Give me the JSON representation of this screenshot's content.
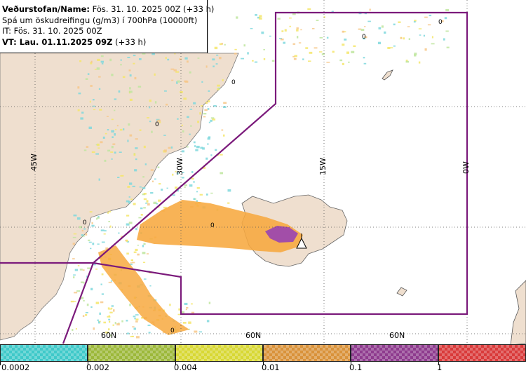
{
  "header": {
    "line1_label": "Veðurstofan/Name:",
    "line1_value": "Fös. 31. 10. 2025 00Z (+33 h)",
    "line2": "Spá um öskudreifingu (g/m3) í 700hPa (10000ft)",
    "line3": "IT: Fös. 31. 10. 2025 00Z",
    "line4_label": "VT: Lau. 01.11.2025 09Z",
    "line4_value": "(+33 h)"
  },
  "map": {
    "longitude_labels": [
      "45W",
      "30W",
      "15W",
      "0W"
    ],
    "latitude_labels": [
      "60N",
      "60N",
      "60N"
    ],
    "contour_labels": [
      "0",
      "0",
      "0",
      "0",
      "0",
      "0",
      "0"
    ],
    "colors": {
      "land": "#efdfcf",
      "sea": "#ffffff",
      "region_border": "#7b1a7b",
      "ash_orange": "#f7a93f",
      "ash_purple": "#a24ea8",
      "ash_light_yellow": "#f5e66b",
      "ash_cyan": "#7fd8dd"
    }
  },
  "legend": {
    "labels": [
      "0.0002",
      "0.002",
      "0.004",
      "0.01",
      "0.1",
      "1"
    ],
    "colors": [
      "#3fc9c9",
      "#9cb83a",
      "#d8d834",
      "#d9923a",
      "#8e3b8e",
      "#d93a3a"
    ]
  }
}
